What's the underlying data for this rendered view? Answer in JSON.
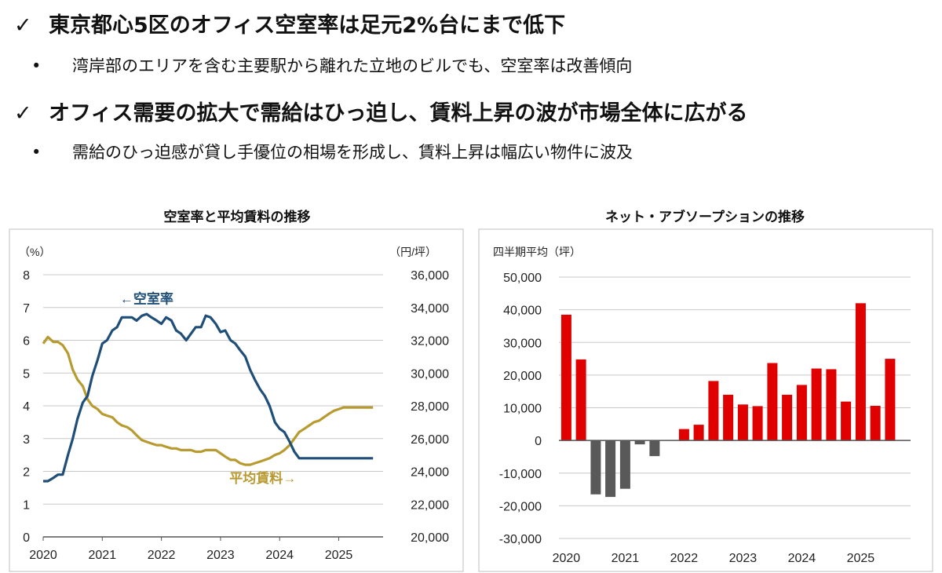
{
  "bullets": {
    "h1": "東京都心5区のオフィス空室率は足元2%台にまで低下",
    "s1": "湾岸部のエリアを含む主要駅から離れた立地のビルでも、空室率は改善傾向",
    "h2": "オフィス需要の拡大で需給はひっ迫し、賃料上昇の波が市場全体に広がる",
    "s2": "需給のひっ迫感が貸し手優位の相場を形成し、賃料上昇は幅広い物件に波及",
    "check_glyph": "✓",
    "dot_glyph": "•"
  },
  "chart_data": [
    {
      "type": "line",
      "title": "空室率と平均賃料の推移",
      "y_unit_left": "（%）",
      "y_unit_right": "（円/坪）",
      "x_ticks": [
        "2020",
        "2021",
        "2022",
        "2023",
        "2024",
        "2025"
      ],
      "x_range": [
        2020.0,
        2025.75
      ],
      "y_left": {
        "range": [
          0,
          8
        ],
        "ticks": [
          "0",
          "1",
          "2",
          "3",
          "4",
          "5",
          "6",
          "7",
          "8"
        ]
      },
      "y_right": {
        "range": [
          20000,
          36000
        ],
        "ticks": [
          "20,000",
          "22,000",
          "24,000",
          "26,000",
          "28,000",
          "30,000",
          "32,000",
          "34,000",
          "36,000"
        ]
      },
      "colors": {
        "vacancy": "#1f4e79",
        "rent": "#b89b30"
      },
      "series": [
        {
          "name": "空室率",
          "label": "←空室率",
          "axis": "left",
          "x": [
            2020.0,
            2020.08,
            2020.17,
            2020.25,
            2020.33,
            2020.42,
            2020.5,
            2020.58,
            2020.67,
            2020.75,
            2020.83,
            2020.92,
            2021.0,
            2021.08,
            2021.17,
            2021.25,
            2021.33,
            2021.42,
            2021.5,
            2021.58,
            2021.67,
            2021.75,
            2021.83,
            2021.92,
            2022.0,
            2022.08,
            2022.17,
            2022.25,
            2022.33,
            2022.42,
            2022.5,
            2022.58,
            2022.67,
            2022.75,
            2022.83,
            2022.92,
            2023.0,
            2023.08,
            2023.17,
            2023.25,
            2023.33,
            2023.42,
            2023.5,
            2023.58,
            2023.67,
            2023.75,
            2023.83,
            2023.92,
            2024.0,
            2024.08,
            2024.17,
            2024.25,
            2024.33,
            2024.42,
            2024.5,
            2024.58,
            2024.67,
            2024.75,
            2024.83,
            2024.92,
            2025.0,
            2025.08,
            2025.17,
            2025.25,
            2025.33,
            2025.42,
            2025.5,
            2025.58
          ],
          "values": [
            1.7,
            1.7,
            1.8,
            1.9,
            1.9,
            2.5,
            3.0,
            3.6,
            4.1,
            4.3,
            4.9,
            5.4,
            5.9,
            6.0,
            6.3,
            6.4,
            6.7,
            6.7,
            6.7,
            6.6,
            6.75,
            6.8,
            6.7,
            6.6,
            6.5,
            6.7,
            6.6,
            6.3,
            6.2,
            6.0,
            6.2,
            6.4,
            6.4,
            6.75,
            6.7,
            6.5,
            6.25,
            6.3,
            6.0,
            5.9,
            5.7,
            5.5,
            5.1,
            4.8,
            4.5,
            4.3,
            4.0,
            3.5,
            3.3,
            3.2,
            2.9,
            2.6,
            2.4,
            2.4,
            2.4,
            2.4,
            2.4,
            2.4,
            2.4,
            2.4,
            2.4,
            2.4,
            2.4,
            2.4,
            2.4,
            2.4,
            2.4,
            2.4
          ]
        },
        {
          "name": "平均賃料",
          "label": "平均賃料→",
          "axis": "right",
          "x": [
            2020.0,
            2020.08,
            2020.17,
            2020.25,
            2020.33,
            2020.42,
            2020.5,
            2020.58,
            2020.67,
            2020.75,
            2020.83,
            2020.92,
            2021.0,
            2021.08,
            2021.17,
            2021.25,
            2021.33,
            2021.42,
            2021.5,
            2021.58,
            2021.67,
            2021.75,
            2021.83,
            2021.92,
            2022.0,
            2022.08,
            2022.17,
            2022.25,
            2022.33,
            2022.42,
            2022.5,
            2022.58,
            2022.67,
            2022.75,
            2022.83,
            2022.92,
            2023.0,
            2023.08,
            2023.17,
            2023.25,
            2023.33,
            2023.42,
            2023.5,
            2023.58,
            2023.67,
            2023.75,
            2023.83,
            2023.92,
            2024.0,
            2024.08,
            2024.17,
            2024.25,
            2024.33,
            2024.42,
            2024.5,
            2024.58,
            2024.67,
            2024.75,
            2024.83,
            2024.92,
            2025.0,
            2025.08,
            2025.17,
            2025.25,
            2025.33,
            2025.42,
            2025.5,
            2025.58
          ],
          "values": [
            31.8,
            32.2,
            31.9,
            31.9,
            31.7,
            31.2,
            30.2,
            29.6,
            29.2,
            28.4,
            28.0,
            27.8,
            27.5,
            27.4,
            27.3,
            27.0,
            26.8,
            26.7,
            26.5,
            26.2,
            25.9,
            25.8,
            25.7,
            25.6,
            25.6,
            25.5,
            25.4,
            25.4,
            25.3,
            25.3,
            25.3,
            25.2,
            25.2,
            25.3,
            25.3,
            25.3,
            25.1,
            24.9,
            24.7,
            24.7,
            24.5,
            24.4,
            24.4,
            24.5,
            24.6,
            24.7,
            24.8,
            25.0,
            25.1,
            25.3,
            25.6,
            26.0,
            26.4,
            26.6,
            26.8,
            27.0,
            27.1,
            27.3,
            27.5,
            27.7,
            27.8,
            27.9,
            27.9,
            27.9,
            27.9,
            27.9,
            27.9,
            27.9
          ]
        }
      ]
    },
    {
      "type": "bar",
      "title": "ネット・アブソープションの推移",
      "y_unit": "四半期平均（坪）",
      "x_ticks": [
        "2020",
        "2021",
        "2022",
        "2023",
        "2024",
        "2025"
      ],
      "ylim": [
        -30000,
        50000
      ],
      "y_ticks": [
        "-30,000",
        "-20,000",
        "-10,000",
        "0",
        "10,000",
        "20,000",
        "30,000",
        "40,000",
        "50,000"
      ],
      "colors": {
        "positive": "#e00000",
        "negative": "#595959"
      },
      "categories": [
        "2020Q1",
        "2020Q2",
        "2020Q3",
        "2020Q4",
        "2021Q1",
        "2021Q2",
        "2021Q3",
        "2021Q4",
        "2022Q1",
        "2022Q2",
        "2022Q3",
        "2022Q4",
        "2023Q1",
        "2023Q2",
        "2023Q3",
        "2023Q4",
        "2024Q1",
        "2024Q2",
        "2024Q3",
        "2024Q4",
        "2025Q1",
        "2025Q2",
        "2025Q3"
      ],
      "values": [
        38500,
        24800,
        -16500,
        -17300,
        -14800,
        -1200,
        -4800,
        0,
        3500,
        4800,
        18200,
        14000,
        11000,
        10500,
        23700,
        14000,
        17000,
        22000,
        21800,
        11900,
        42000,
        10600,
        25000
      ]
    }
  ]
}
